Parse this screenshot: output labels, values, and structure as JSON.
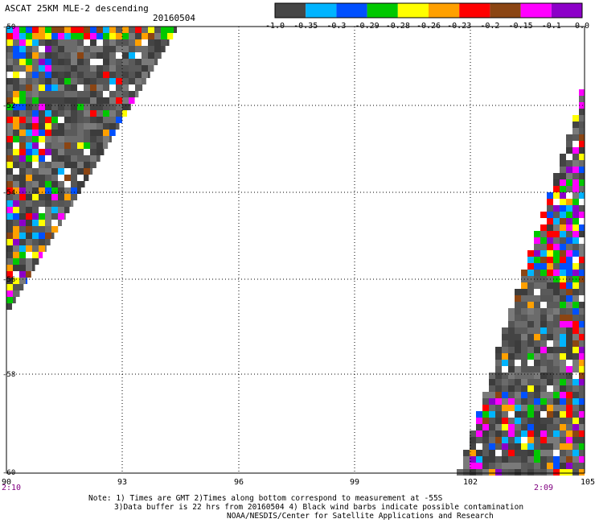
{
  "header": {
    "title": "ASCAT 25KM MLE-2 descending",
    "date": "20160504"
  },
  "colorbar": {
    "labels": [
      "-1.0",
      "-0.35",
      "-0.3",
      "-0.29",
      "-0.28",
      "-0.26",
      "-0.23",
      "-0.2",
      "-0.15",
      "-0.1",
      "0.0"
    ],
    "colors": [
      "#464646",
      "#00b4ff",
      "#0050ff",
      "#00c800",
      "#ffff00",
      "#ffa000",
      "#ff0000",
      "#8b4513",
      "#ff00ff",
      "#8c00c8"
    ]
  },
  "axes": {
    "x_ticks": [
      "90",
      "93",
      "96",
      "99",
      "102",
      "105"
    ],
    "y_ticks": [
      "-50",
      "-52",
      "-54",
      "-56",
      "-58",
      "-60"
    ],
    "time_labels": [
      "2:10",
      "2:09"
    ]
  },
  "notes": {
    "line1": "Note: 1) Times are GMT 2)Times along bottom correspond to measurement at -55S",
    "line2": "3)Data buffer is 22 hrs from 20160504 4) Black wind barbs indicate possible contamination",
    "line3": "NOAA/NESDIS/Center for Satellite Applications and Research"
  },
  "palette": {
    "gray_dark": "#3c3c3c",
    "gray_mid": "#555555",
    "gray_light": "#7a7a7a",
    "time_label_color": "#800080"
  }
}
